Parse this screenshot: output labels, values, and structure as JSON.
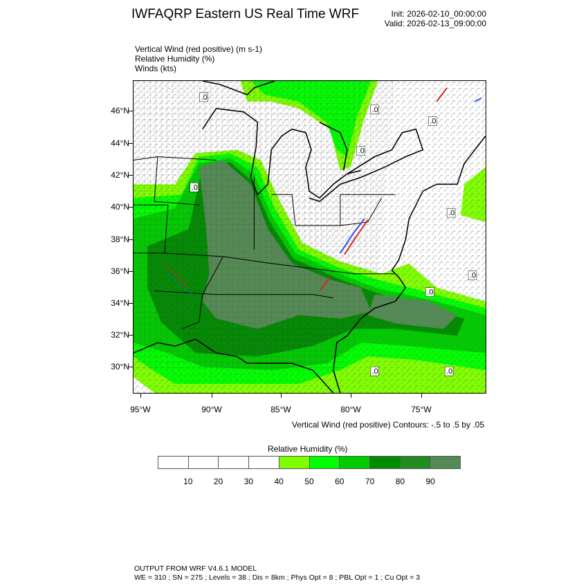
{
  "header": {
    "title": "IWFAQRP Eastern US Real Time WRF",
    "init": "Init: 2026-02-10_00:00:00",
    "valid": "Valid: 2026-02-13_09:00:00"
  },
  "fields": [
    "Vertical Wind (red positive)   (m s-1)",
    "Relative Humidity   (%)",
    "Winds   (kts)"
  ],
  "map": {
    "lat_labels": [
      "46°N",
      "44°N",
      "42°N",
      "40°N",
      "38°N",
      "36°N",
      "34°N",
      "32°N",
      "30°N"
    ],
    "lon_labels": [
      "95°W",
      "90°W",
      "85°W",
      "80°W",
      "75°W"
    ],
    "contour_label": ".0"
  },
  "contour_info": "Vertical Wind (red positive) Contours: -.5 to .5 by .05",
  "colorbar": {
    "title": "Relative Humidity  (%)",
    "labels": [
      "10",
      "20",
      "30",
      "40",
      "50",
      "60",
      "70",
      "80",
      "90"
    ],
    "colors": [
      "#ffffff",
      "#ffffff",
      "#ffffff",
      "#ffffff",
      "#80ff00",
      "#00ff00",
      "#00cc00",
      "#008b00",
      "#228b22",
      "#548b54"
    ]
  },
  "footer": {
    "line1": "OUTPUT FROM WRF V4.6.1 MODEL",
    "line2": "WE = 310 ; SN = 275 ; Levels = 38 ; Dis = 8km ; Phys Opt = 8 ; PBL Opt = 1 ; Cu Opt = 3"
  }
}
